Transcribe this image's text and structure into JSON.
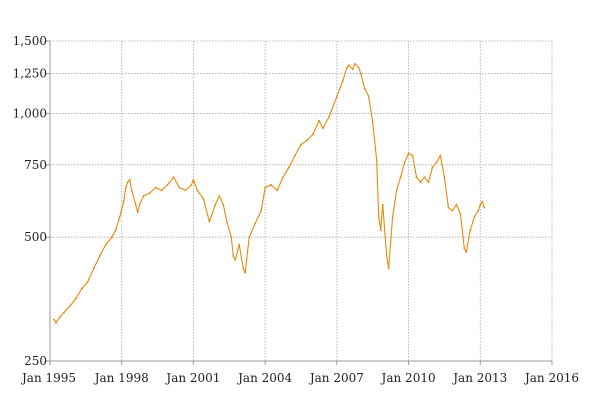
{
  "chart_data": {
    "type": "line",
    "title": "",
    "xlabel": "",
    "ylabel": "",
    "y_scale": "log",
    "ylim": [
      250,
      1500
    ],
    "xlim": [
      "1995-01",
      "2016-01"
    ],
    "grid": true,
    "legend": "none",
    "x_ticks": [
      {
        "date": "1995-01",
        "label": "Jan 1995"
      },
      {
        "date": "1998-01",
        "label": "Jan 1998"
      },
      {
        "date": "2001-01",
        "label": "Jan 2001"
      },
      {
        "date": "2004-01",
        "label": "Jan 2004"
      },
      {
        "date": "2007-01",
        "label": "Jan 2007"
      },
      {
        "date": "2010-01",
        "label": "Jan 2010"
      },
      {
        "date": "2013-01",
        "label": "Jan 2013"
      },
      {
        "date": "2016-01",
        "label": "Jan 2016"
      }
    ],
    "y_ticks": [
      {
        "value": 250,
        "label": "250"
      },
      {
        "value": 500,
        "label": "500"
      },
      {
        "value": 750,
        "label": "750"
      },
      {
        "value": 1000,
        "label": "1,000"
      },
      {
        "value": 1250,
        "label": "1,250"
      },
      {
        "value": 1500,
        "label": "1,500"
      }
    ],
    "series": [
      {
        "color": "#e8890c",
        "points": [
          [
            "1995-03",
            315
          ],
          [
            "1995-04",
            310
          ],
          [
            "1995-06",
            320
          ],
          [
            "1995-08",
            328
          ],
          [
            "1995-11",
            340
          ],
          [
            "1996-02",
            355
          ],
          [
            "1996-05",
            375
          ],
          [
            "1996-08",
            390
          ],
          [
            "1996-11",
            420
          ],
          [
            "1997-02",
            450
          ],
          [
            "1997-05",
            480
          ],
          [
            "1997-08",
            500
          ],
          [
            "1997-10",
            520
          ],
          [
            "1997-12",
            560
          ],
          [
            "1998-02",
            610
          ],
          [
            "1998-03",
            660
          ],
          [
            "1998-04",
            680
          ],
          [
            "1998-05",
            690
          ],
          [
            "1998-06",
            650
          ],
          [
            "1998-08",
            600
          ],
          [
            "1998-09",
            575
          ],
          [
            "1998-10",
            600
          ],
          [
            "1998-12",
            630
          ],
          [
            "1999-03",
            640
          ],
          [
            "1999-06",
            660
          ],
          [
            "1999-09",
            650
          ],
          [
            "1999-12",
            670
          ],
          [
            "2000-03",
            700
          ],
          [
            "2000-06",
            660
          ],
          [
            "2000-09",
            650
          ],
          [
            "2000-12",
            670
          ],
          [
            "2001-01",
            690
          ],
          [
            "2001-03",
            650
          ],
          [
            "2001-06",
            620
          ],
          [
            "2001-09",
            545
          ],
          [
            "2001-12",
            600
          ],
          [
            "2002-02",
            630
          ],
          [
            "2002-04",
            600
          ],
          [
            "2002-06",
            540
          ],
          [
            "2002-08",
            500
          ],
          [
            "2002-09",
            450
          ],
          [
            "2002-10",
            440
          ],
          [
            "2002-12",
            480
          ],
          [
            "2003-02",
            420
          ],
          [
            "2003-03",
            410
          ],
          [
            "2003-05",
            500
          ],
          [
            "2003-08",
            540
          ],
          [
            "2003-11",
            580
          ],
          [
            "2004-01",
            660
          ],
          [
            "2004-04",
            670
          ],
          [
            "2004-07",
            650
          ],
          [
            "2004-10",
            700
          ],
          [
            "2005-01",
            740
          ],
          [
            "2005-04",
            790
          ],
          [
            "2005-07",
            840
          ],
          [
            "2005-10",
            860
          ],
          [
            "2006-01",
            890
          ],
          [
            "2006-04",
            960
          ],
          [
            "2006-06",
            920
          ],
          [
            "2006-09",
            980
          ],
          [
            "2007-01",
            1100
          ],
          [
            "2007-04",
            1200
          ],
          [
            "2007-06",
            1290
          ],
          [
            "2007-07",
            1310
          ],
          [
            "2007-09",
            1280
          ],
          [
            "2007-10",
            1320
          ],
          [
            "2007-12",
            1290
          ],
          [
            "2008-01",
            1250
          ],
          [
            "2008-03",
            1150
          ],
          [
            "2008-05",
            1100
          ],
          [
            "2008-07",
            950
          ],
          [
            "2008-09",
            770
          ],
          [
            "2008-10",
            560
          ],
          [
            "2008-11",
            520
          ],
          [
            "2008-12",
            600
          ],
          [
            "2009-02",
            450
          ],
          [
            "2009-03",
            420
          ],
          [
            "2009-05",
            560
          ],
          [
            "2009-07",
            650
          ],
          [
            "2009-09",
            700
          ],
          [
            "2009-11",
            760
          ],
          [
            "2010-01",
            800
          ],
          [
            "2010-03",
            790
          ],
          [
            "2010-05",
            700
          ],
          [
            "2010-07",
            680
          ],
          [
            "2010-09",
            700
          ],
          [
            "2010-11",
            680
          ],
          [
            "2011-01",
            740
          ],
          [
            "2011-03",
            760
          ],
          [
            "2011-05",
            790
          ],
          [
            "2011-07",
            700
          ],
          [
            "2011-09",
            590
          ],
          [
            "2011-11",
            580
          ],
          [
            "2012-01",
            600
          ],
          [
            "2012-03",
            570
          ],
          [
            "2012-05",
            470
          ],
          [
            "2012-06",
            460
          ],
          [
            "2012-08",
            520
          ],
          [
            "2012-10",
            560
          ],
          [
            "2012-12",
            580
          ],
          [
            "2013-01",
            600
          ],
          [
            "2013-02",
            610
          ],
          [
            "2013-03",
            590
          ]
        ]
      }
    ]
  }
}
